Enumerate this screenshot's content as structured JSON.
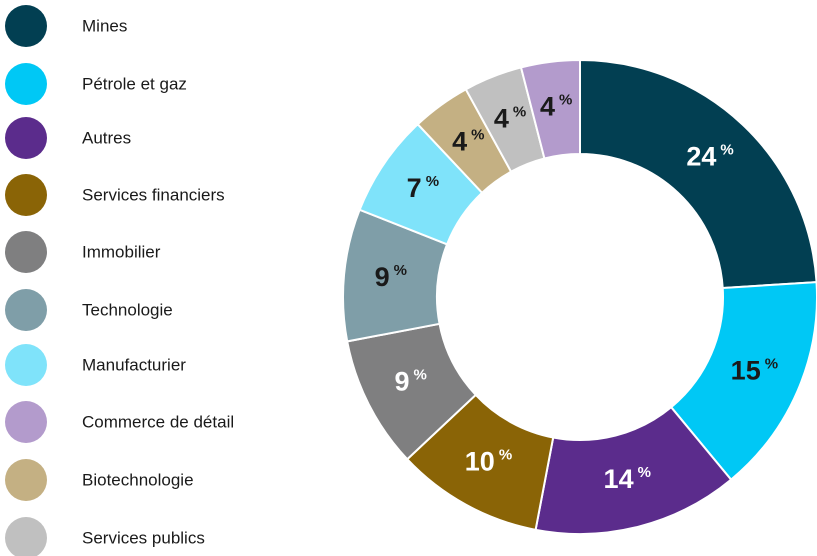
{
  "chart_data": {
    "type": "donut",
    "unit": "%",
    "legend": [
      {
        "name": "Mines",
        "color": "#023f52"
      },
      {
        "name": "Pétrole et gaz",
        "color": "#00c8f5"
      },
      {
        "name": "Autres",
        "color": "#5b2c8c"
      },
      {
        "name": "Services financiers",
        "color": "#8a6406"
      },
      {
        "name": "Immobilier",
        "color": "#7f7f80"
      },
      {
        "name": "Technologie",
        "color": "#7f9ea8"
      },
      {
        "name": "Manufacturier",
        "color": "#7fe3fa"
      },
      {
        "name": "Commerce de détail",
        "color": "#b39bcc"
      },
      {
        "name": "Biotechnologie",
        "color": "#c4b083"
      },
      {
        "name": "Services publics",
        "color": "#c0c0c0"
      }
    ],
    "slices": [
      {
        "value": 24,
        "color": "#023f52",
        "label_color": "#ffffff"
      },
      {
        "value": 15,
        "color": "#00c8f5",
        "label_color": "#1a1a1a"
      },
      {
        "value": 14,
        "color": "#5b2c8c",
        "label_color": "#ffffff"
      },
      {
        "value": 10,
        "color": "#8a6406",
        "label_color": "#ffffff"
      },
      {
        "value": 9,
        "color": "#7f7f80",
        "label_color": "#ffffff"
      },
      {
        "value": 9,
        "color": "#7f9ea8",
        "label_color": "#1a1a1a"
      },
      {
        "value": 7,
        "color": "#7fe3fa",
        "label_color": "#1a1a1a"
      },
      {
        "value": 4,
        "color": "#c4b083",
        "label_color": "#1a1a1a"
      },
      {
        "value": 4,
        "color": "#c0c0c0",
        "label_color": "#1a1a1a"
      },
      {
        "value": 4,
        "color": "#b39bcc",
        "label_color": "#1a1a1a"
      }
    ]
  }
}
